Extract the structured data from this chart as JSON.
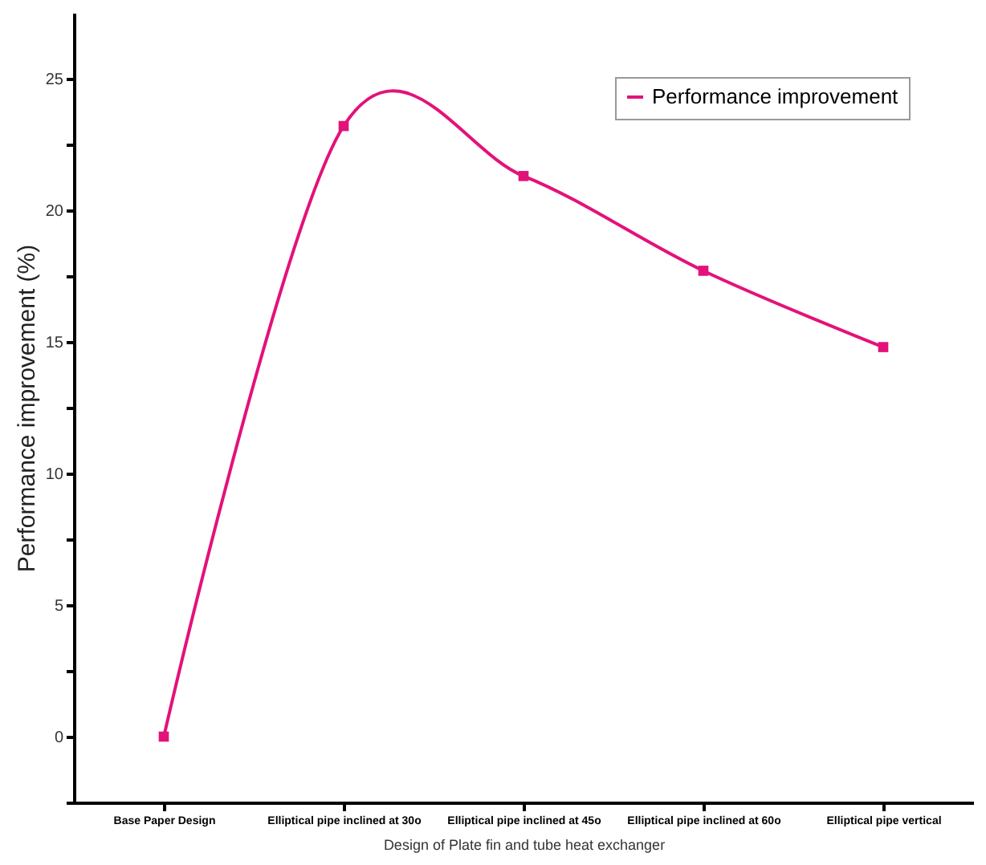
{
  "chart_data": {
    "type": "line",
    "xlabel": "Design of Plate fin and tube heat exchanger",
    "ylabel": "Performance improvement (%)",
    "categories": [
      "Base Paper Design",
      "Elliptical pipe inclined at 30o",
      "Elliptical pipe inclined at 45o",
      "Elliptical pipe inclined at 60o",
      "Elliptical pipe vertical"
    ],
    "series": [
      {
        "name": "Performance improvement",
        "color": "#e3127a",
        "values": [
          0,
          23.2,
          21.3,
          17.7,
          14.8
        ]
      }
    ],
    "ylim": [
      -2.5,
      27.5
    ],
    "yticks": [
      {
        "value": -2.5,
        "label": null
      },
      0,
      {
        "value": 2.5,
        "label": null
      },
      5,
      {
        "value": 7.5,
        "label": null
      },
      10,
      {
        "value": 12.5,
        "label": null
      },
      15,
      {
        "value": 17.5,
        "label": null
      },
      20,
      {
        "value": 22.5,
        "label": null
      },
      25
    ],
    "grid": false,
    "legend": "top right",
    "marker": "square",
    "line_style": "solid"
  }
}
